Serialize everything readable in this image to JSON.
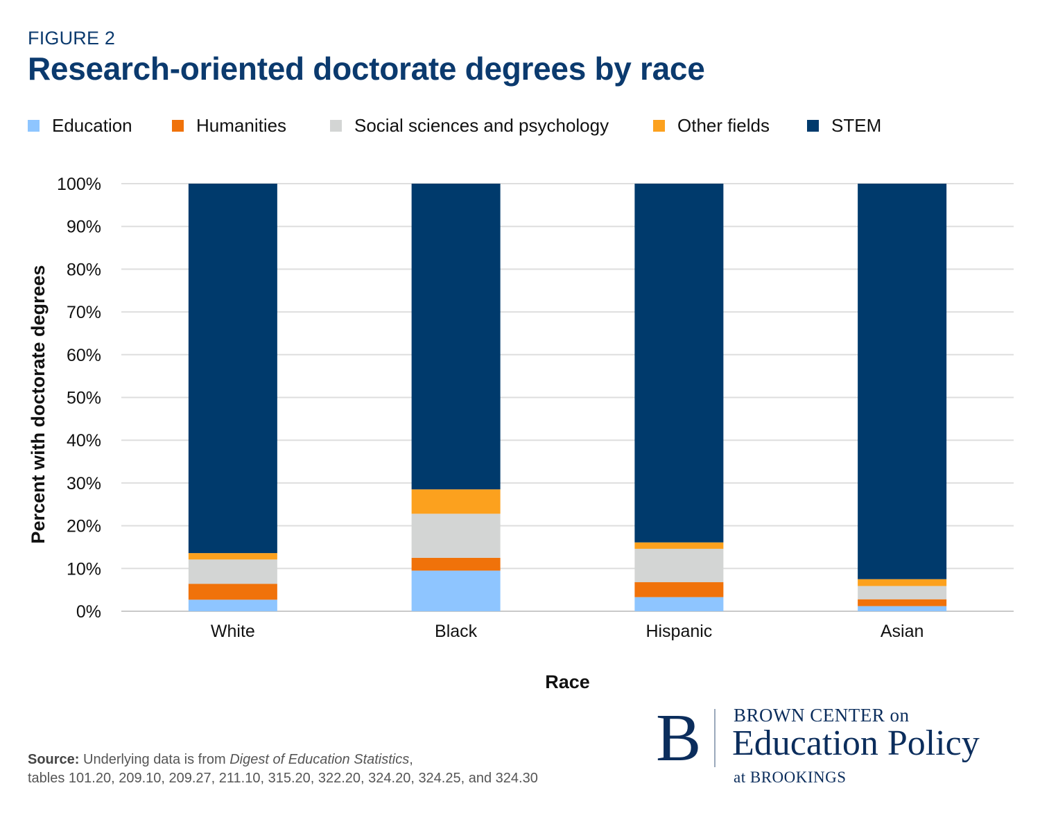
{
  "figure_label": "FIGURE 2",
  "title": "Research-oriented doctorate degrees by race",
  "source": {
    "lead": "Source:",
    "text_before": " Underlying data is from ",
    "italic": "Digest of Education Statistics",
    "text_after": ",",
    "line2": "tables 101.20, 209.10, 209.27, 211.10, 315.20, 322.20, 324.20, 324.25, and 324.30"
  },
  "logo": {
    "mark": "B",
    "line1": "BROWN CENTER on",
    "line2": "Education Policy",
    "line3": "at BROOKINGS"
  },
  "chart_data": {
    "type": "bar",
    "stacked": true,
    "title": "Research-oriented doctorate degrees by race",
    "xlabel": "Race",
    "ylabel": "Percent with doctorate degrees",
    "categories": [
      "White",
      "Black",
      "Hispanic",
      "Asian"
    ],
    "ylim": [
      0,
      100
    ],
    "yticks": [
      "0%",
      "10%",
      "20%",
      "30%",
      "40%",
      "50%",
      "60%",
      "70%",
      "80%",
      "90%",
      "100%"
    ],
    "grid": true,
    "legend_position": "top",
    "series": [
      {
        "name": "Education",
        "color": "#8ec5ff",
        "values": [
          2.7,
          9.5,
          3.3,
          1.2
        ]
      },
      {
        "name": "Humanities",
        "color": "#f0720a",
        "values": [
          3.7,
          3.0,
          3.5,
          1.6
        ]
      },
      {
        "name": "Social sciences and psychology",
        "color": "#d3d5d4",
        "values": [
          5.7,
          10.3,
          7.8,
          3.1
        ]
      },
      {
        "name": "Other fields",
        "color": "#fca11e",
        "values": [
          1.5,
          5.7,
          1.5,
          1.6
        ]
      },
      {
        "name": "STEM",
        "color": "#003a6c",
        "values": [
          86.4,
          71.5,
          83.9,
          92.5
        ]
      }
    ]
  }
}
